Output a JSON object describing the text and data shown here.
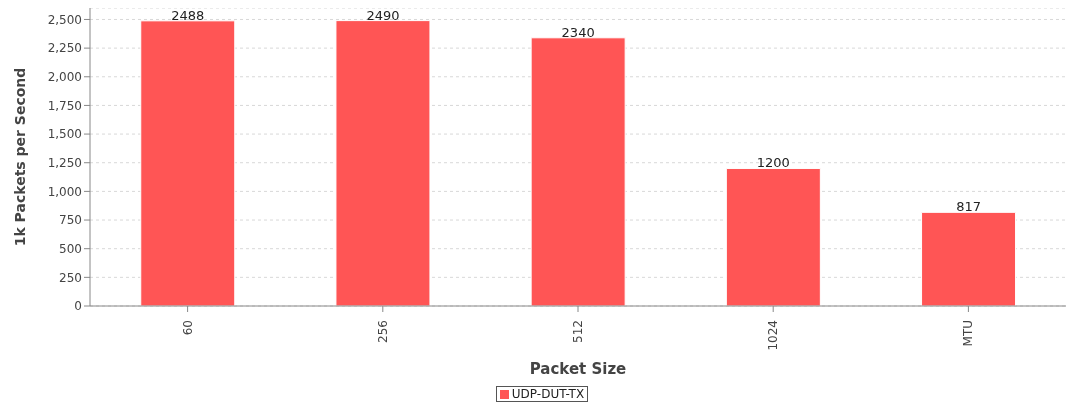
{
  "chart_data": {
    "type": "bar",
    "xlabel": "Packet Size",
    "ylabel": "1k Packets per Second",
    "categories": [
      "60",
      "256",
      "512",
      "1024",
      "MTU"
    ],
    "series": [
      {
        "name": "UDP-DUT-TX",
        "color": "#ff5555",
        "values": [
          2488,
          2490,
          2340,
          1200,
          817
        ]
      }
    ],
    "ylim": [
      0,
      2600
    ],
    "yticks": [
      {
        "value": 0,
        "label": "0"
      },
      {
        "value": 250,
        "label": "250"
      },
      {
        "value": 500,
        "label": "500"
      },
      {
        "value": 750,
        "label": "750"
      },
      {
        "value": 1000,
        "label": "1,000"
      },
      {
        "value": 1250,
        "label": "1,250"
      },
      {
        "value": 1500,
        "label": "1,500"
      },
      {
        "value": 1750,
        "label": "1,750"
      },
      {
        "value": 2000,
        "label": "2,000"
      },
      {
        "value": 2250,
        "label": "2,250"
      },
      {
        "value": 2500,
        "label": "2,500"
      }
    ],
    "grid": "y",
    "legend": "bottom",
    "data_labels": true
  }
}
